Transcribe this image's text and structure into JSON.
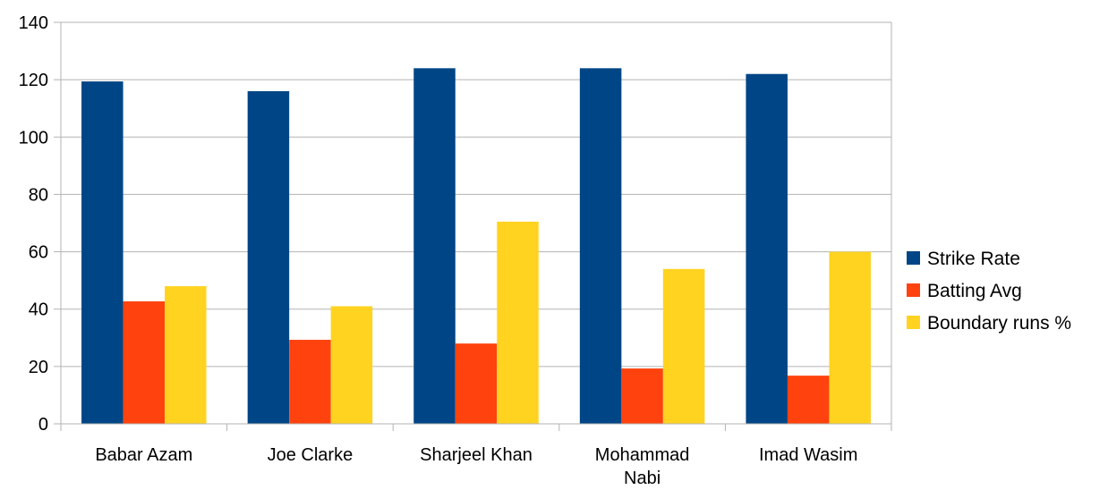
{
  "chart_data": {
    "type": "bar",
    "categories": [
      [
        "Babar Azam"
      ],
      [
        "Joe Clarke"
      ],
      [
        "Sharjeel Khan"
      ],
      [
        "Mohammad",
        "Nabi"
      ],
      [
        "Imad Wasim"
      ]
    ],
    "series": [
      {
        "name": "Strike Rate",
        "color": "#004586",
        "values": [
          119.4,
          116,
          124,
          124,
          122
        ]
      },
      {
        "name": "Batting Avg",
        "color": "#ff420e",
        "values": [
          42.7,
          29.3,
          28,
          19.3,
          16.8
        ]
      },
      {
        "name": "Boundary runs %",
        "color": "#ffd320",
        "values": [
          48,
          41,
          70.5,
          54,
          60
        ]
      }
    ],
    "ylim": [
      0,
      140
    ],
    "yticks": [
      "0",
      "20",
      "40",
      "60",
      "80",
      "100",
      "120",
      "140"
    ],
    "grid": true,
    "legend": "right",
    "title": "",
    "xlabel": "",
    "ylabel": ""
  }
}
